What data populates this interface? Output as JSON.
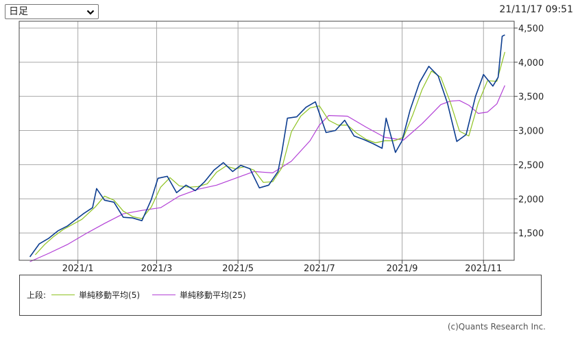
{
  "selector": {
    "value": "日足",
    "options": [
      "日足"
    ]
  },
  "timestamp": "21/11/17 09:51",
  "legend": {
    "prefix": "上段:",
    "items": [
      {
        "label": "単純移動平均(5)",
        "color": "#8dc21f"
      },
      {
        "label": "単純移動平均(25)",
        "color": "#b23fd6"
      }
    ]
  },
  "copyright": "(c)Quants Research Inc.",
  "colors": {
    "price": "#0b3c8f",
    "ma5": "#8dc21f",
    "ma25": "#b23fd6",
    "grid": "#a8a8a8"
  },
  "chart_data": {
    "type": "line",
    "title": "",
    "xlabel": "",
    "ylabel": "",
    "ylim": [
      1100,
      4600
    ],
    "xlim": [
      "2020-11-18",
      "2021-11-24"
    ],
    "grid": true,
    "y_ticks": [
      1500,
      2000,
      2500,
      3000,
      3500,
      4000,
      4500
    ],
    "y_tick_labels": [
      "1,500",
      "2,000",
      "2,500",
      "3,000",
      "3,500",
      "4,000",
      "4,500"
    ],
    "x_ticks": [
      "2021-01-01",
      "2021-03-01",
      "2021-05-01",
      "2021-07-01",
      "2021-09-01",
      "2021-11-01"
    ],
    "x_tick_labels": [
      "2021/1",
      "2021/3",
      "2021/5",
      "2021/7",
      "2021/9",
      "2021/11"
    ],
    "series": [
      {
        "name": "",
        "role": "price",
        "points": [
          [
            "2020-11-26",
            1150
          ],
          [
            "2020-12-03",
            1340
          ],
          [
            "2020-12-10",
            1420
          ],
          [
            "2020-12-17",
            1530
          ],
          [
            "2020-12-24",
            1600
          ],
          [
            "2021-01-05",
            1780
          ],
          [
            "2021-01-12",
            1870
          ],
          [
            "2021-01-15",
            2150
          ],
          [
            "2021-01-21",
            1980
          ],
          [
            "2021-01-28",
            1950
          ],
          [
            "2021-02-04",
            1730
          ],
          [
            "2021-02-11",
            1720
          ],
          [
            "2021-02-18",
            1680
          ],
          [
            "2021-02-25",
            1990
          ],
          [
            "2021-03-02",
            2300
          ],
          [
            "2021-03-09",
            2330
          ],
          [
            "2021-03-16",
            2090
          ],
          [
            "2021-03-23",
            2200
          ],
          [
            "2021-03-30",
            2120
          ],
          [
            "2021-04-06",
            2250
          ],
          [
            "2021-04-13",
            2420
          ],
          [
            "2021-04-20",
            2530
          ],
          [
            "2021-04-27",
            2400
          ],
          [
            "2021-05-03",
            2490
          ],
          [
            "2021-05-10",
            2440
          ],
          [
            "2021-05-17",
            2160
          ],
          [
            "2021-05-24",
            2200
          ],
          [
            "2021-05-31",
            2400
          ],
          [
            "2021-06-03",
            2700
          ],
          [
            "2021-06-07",
            3180
          ],
          [
            "2021-06-14",
            3200
          ],
          [
            "2021-06-21",
            3340
          ],
          [
            "2021-06-28",
            3420
          ],
          [
            "2021-07-06",
            2970
          ],
          [
            "2021-07-13",
            3000
          ],
          [
            "2021-07-20",
            3150
          ],
          [
            "2021-07-27",
            2920
          ],
          [
            "2021-08-03",
            2870
          ],
          [
            "2021-08-10",
            2810
          ],
          [
            "2021-08-17",
            2740
          ],
          [
            "2021-08-20",
            3180
          ],
          [
            "2021-08-27",
            2680
          ],
          [
            "2021-09-01",
            2850
          ],
          [
            "2021-09-07",
            3300
          ],
          [
            "2021-09-14",
            3700
          ],
          [
            "2021-09-21",
            3940
          ],
          [
            "2021-09-28",
            3800
          ],
          [
            "2021-10-05",
            3400
          ],
          [
            "2021-10-12",
            2840
          ],
          [
            "2021-10-19",
            2940
          ],
          [
            "2021-10-26",
            3500
          ],
          [
            "2021-11-01",
            3820
          ],
          [
            "2021-11-08",
            3650
          ],
          [
            "2021-11-12",
            3780
          ],
          [
            "2021-11-15",
            4380
          ],
          [
            "2021-11-17",
            4400
          ]
        ]
      },
      {
        "name": "単純移動平均(5)",
        "role": "ma5",
        "points": [
          [
            "2020-11-30",
            1180
          ],
          [
            "2020-12-07",
            1330
          ],
          [
            "2020-12-14",
            1450
          ],
          [
            "2020-12-21",
            1550
          ],
          [
            "2021-01-04",
            1700
          ],
          [
            "2021-01-14",
            1880
          ],
          [
            "2021-01-21",
            2040
          ],
          [
            "2021-01-28",
            1980
          ],
          [
            "2021-02-04",
            1820
          ],
          [
            "2021-02-11",
            1740
          ],
          [
            "2021-02-18",
            1710
          ],
          [
            "2021-02-25",
            1880
          ],
          [
            "2021-03-04",
            2170
          ],
          [
            "2021-03-11",
            2310
          ],
          [
            "2021-03-18",
            2190
          ],
          [
            "2021-03-25",
            2170
          ],
          [
            "2021-04-01",
            2180
          ],
          [
            "2021-04-08",
            2220
          ],
          [
            "2021-04-15",
            2390
          ],
          [
            "2021-04-22",
            2480
          ],
          [
            "2021-04-29",
            2440
          ],
          [
            "2021-05-06",
            2470
          ],
          [
            "2021-05-13",
            2420
          ],
          [
            "2021-05-20",
            2240
          ],
          [
            "2021-05-27",
            2250
          ],
          [
            "2021-06-03",
            2460
          ],
          [
            "2021-06-10",
            2980
          ],
          [
            "2021-06-17",
            3210
          ],
          [
            "2021-06-24",
            3330
          ],
          [
            "2021-07-01",
            3360
          ],
          [
            "2021-07-08",
            3150
          ],
          [
            "2021-07-15",
            3080
          ],
          [
            "2021-07-22",
            3080
          ],
          [
            "2021-07-29",
            2960
          ],
          [
            "2021-08-05",
            2870
          ],
          [
            "2021-08-12",
            2820
          ],
          [
            "2021-08-19",
            2850
          ],
          [
            "2021-08-26",
            2850
          ],
          [
            "2021-09-02",
            2900
          ],
          [
            "2021-09-09",
            3230
          ],
          [
            "2021-09-16",
            3600
          ],
          [
            "2021-09-23",
            3870
          ],
          [
            "2021-09-30",
            3780
          ],
          [
            "2021-10-07",
            3420
          ],
          [
            "2021-10-14",
            2990
          ],
          [
            "2021-10-21",
            2920
          ],
          [
            "2021-10-28",
            3400
          ],
          [
            "2021-11-04",
            3730
          ],
          [
            "2021-11-11",
            3720
          ],
          [
            "2021-11-17",
            4150
          ]
        ]
      },
      {
        "name": "単純移動平均(25)",
        "role": "ma25",
        "points": [
          [
            "2020-11-26",
            1080
          ],
          [
            "2020-12-10",
            1200
          ],
          [
            "2020-12-24",
            1330
          ],
          [
            "2021-01-07",
            1490
          ],
          [
            "2021-01-21",
            1640
          ],
          [
            "2021-02-04",
            1780
          ],
          [
            "2021-02-18",
            1830
          ],
          [
            "2021-03-04",
            1870
          ],
          [
            "2021-03-18",
            2040
          ],
          [
            "2021-04-01",
            2140
          ],
          [
            "2021-04-15",
            2200
          ],
          [
            "2021-04-29",
            2300
          ],
          [
            "2021-05-13",
            2400
          ],
          [
            "2021-05-27",
            2380
          ],
          [
            "2021-06-10",
            2550
          ],
          [
            "2021-06-24",
            2850
          ],
          [
            "2021-07-01",
            3080
          ],
          [
            "2021-07-08",
            3220
          ],
          [
            "2021-07-22",
            3210
          ],
          [
            "2021-08-05",
            3050
          ],
          [
            "2021-08-19",
            2900
          ],
          [
            "2021-09-02",
            2860
          ],
          [
            "2021-09-16",
            3100
          ],
          [
            "2021-09-30",
            3380
          ],
          [
            "2021-10-07",
            3430
          ],
          [
            "2021-10-14",
            3440
          ],
          [
            "2021-10-21",
            3370
          ],
          [
            "2021-10-28",
            3250
          ],
          [
            "2021-11-04",
            3270
          ],
          [
            "2021-11-11",
            3390
          ],
          [
            "2021-11-17",
            3660
          ]
        ]
      }
    ]
  }
}
